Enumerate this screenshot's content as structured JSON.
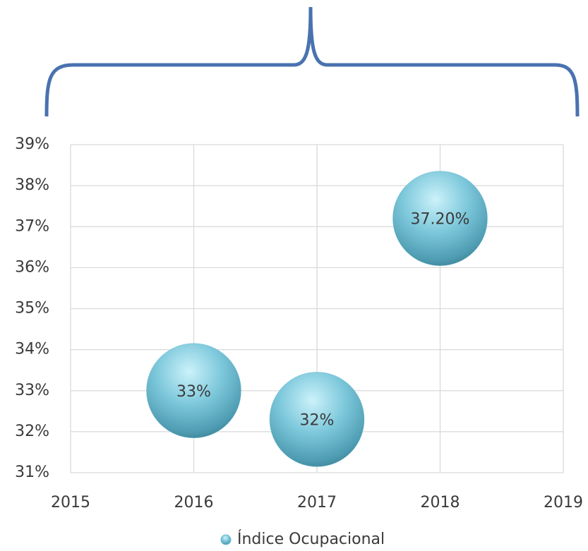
{
  "chart_data": {
    "type": "bubble",
    "series": [
      {
        "name": "Índice Ocupacional",
        "color": "#6cbcd2",
        "x": [
          2016,
          2017,
          2018
        ],
        "values": [
          33,
          32.3,
          37.2
        ],
        "sizes": [
          1,
          1,
          1
        ],
        "value_labels": [
          "33%",
          "32%",
          "37.20%"
        ]
      }
    ],
    "xlim": [
      2015,
      2019
    ],
    "xticks": [
      2015,
      2016,
      2017,
      2018,
      2019
    ],
    "ylim": [
      31,
      39
    ],
    "yticks": [
      {
        "value": 31,
        "label": "31%"
      },
      {
        "value": 32,
        "label": "32%"
      },
      {
        "value": 33,
        "label": "33%"
      },
      {
        "value": 34,
        "label": "34%"
      },
      {
        "value": 35,
        "label": "35%"
      },
      {
        "value": 36,
        "label": "36%"
      },
      {
        "value": 37,
        "label": "37%"
      },
      {
        "value": 38,
        "label": "38%"
      },
      {
        "value": 39,
        "label": "39%"
      }
    ],
    "grid": true,
    "legend": "bottom"
  }
}
